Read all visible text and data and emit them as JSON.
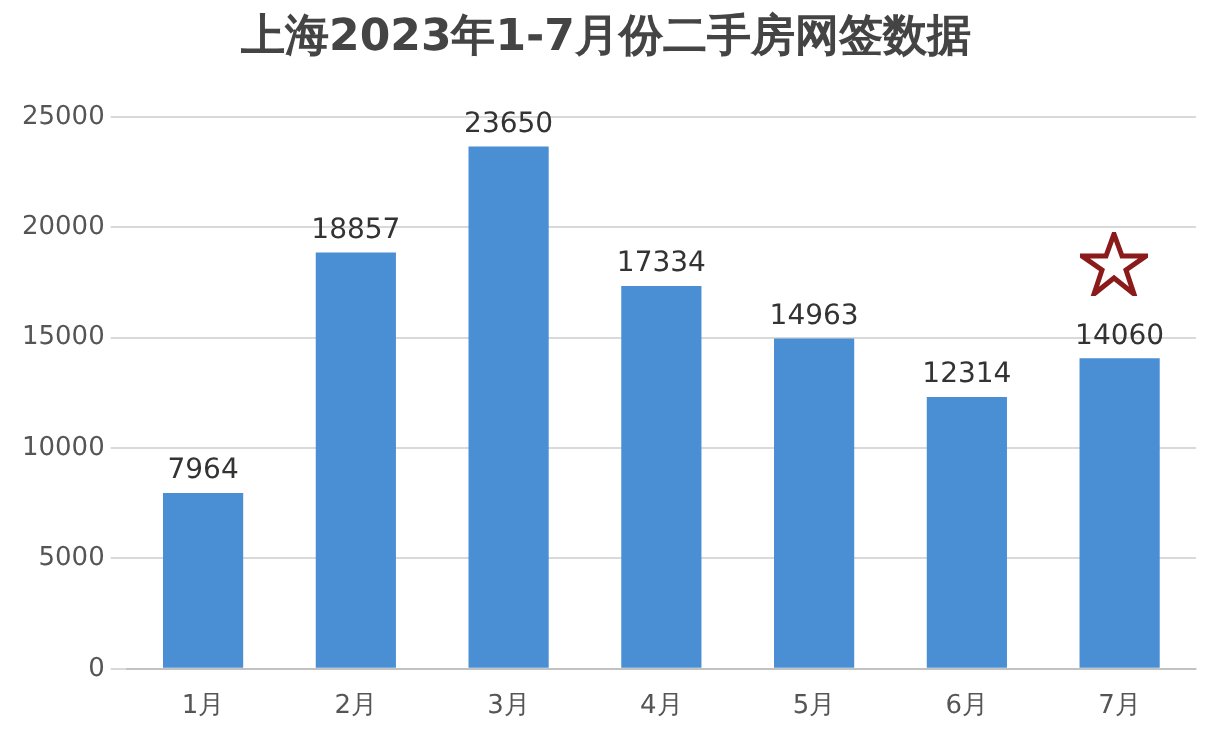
{
  "chart_data": {
    "type": "bar",
    "title": "上海2023年1-7月份二手房网签数据",
    "categories": [
      "1月",
      "2月",
      "3月",
      "4月",
      "5月",
      "6月",
      "7月"
    ],
    "values": [
      7964,
      18857,
      23650,
      17334,
      14963,
      12314,
      14060
    ],
    "color": "#4a8fd4",
    "data_labels": true,
    "ylim": [
      0,
      25000
    ],
    "yticks": [
      0,
      5000,
      10000,
      15000,
      20000,
      25000
    ],
    "grid": "y"
  }
}
